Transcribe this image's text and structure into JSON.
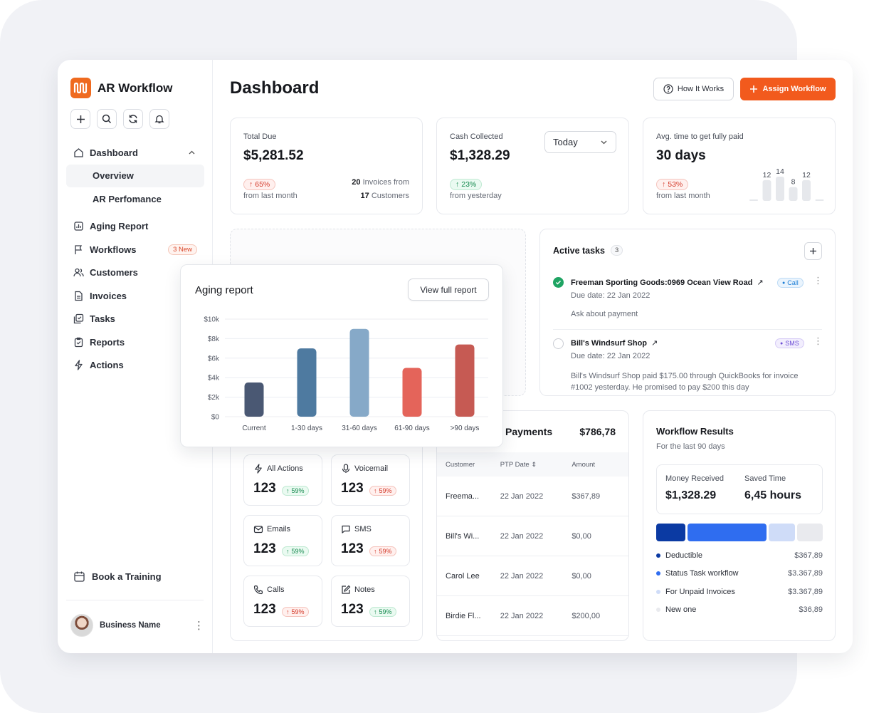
{
  "app": {
    "name": "AR Workflow"
  },
  "sidebar": {
    "nav": {
      "dashboard": "Dashboard",
      "overview": "Overview",
      "ar_performance": "AR Perfomance",
      "aging_report": "Aging Report",
      "workflows": "Workflows",
      "workflows_badge": "3 New",
      "customers": "Customers",
      "invoices": "Invoices",
      "tasks": "Tasks",
      "reports": "Reports",
      "actions": "Actions"
    },
    "book_training": "Book a Training",
    "user_name": "Business Name"
  },
  "header": {
    "title": "Dashboard",
    "how_it_works": "How It Works",
    "assign_workflow": "Assign Workflow"
  },
  "stats": {
    "total_due": {
      "label": "Total Due",
      "value": "$5,281.52",
      "change": "65%",
      "change_note": "from last month",
      "invoices_count": "20",
      "invoices_text": "Invoices from",
      "customers_count": "17",
      "customers_text": "Customers"
    },
    "cash_collected": {
      "label": "Cash Collected",
      "value": "$1,328.29",
      "change": "23%",
      "change_note": "from yesterday",
      "period": "Today"
    },
    "avg_time": {
      "label": "Avg. time to get fully paid",
      "value": "30 days",
      "change": "53%",
      "change_note": "from last month",
      "mini_bars": [
        null,
        12,
        14,
        8,
        12,
        null
      ]
    }
  },
  "aging": {
    "title": "Aging report",
    "view_full": "View full report",
    "chart_data": {
      "type": "bar",
      "title": "Aging report",
      "categories": [
        "Current",
        "1-30 days",
        "31-60 days",
        "61-90 days",
        ">90 days"
      ],
      "values": [
        3500,
        7000,
        9000,
        5000,
        7400
      ],
      "colors": [
        "#4a5873",
        "#4e7aa0",
        "#86a9c8",
        "#e4645a",
        "#c65a53"
      ],
      "y_ticks": [
        "$0",
        "$2k",
        "$4k",
        "$6k",
        "$8k",
        "$10k"
      ],
      "ylim": [
        0,
        10000
      ]
    }
  },
  "tasks": {
    "title": "Active tasks",
    "count": "3",
    "items": [
      {
        "title": "Freeman Sporting Goods:0969 Ocean View Road",
        "tag": "Call",
        "due": "Due date: 22 Jan 2022",
        "note": "Ask about payment"
      },
      {
        "title": "Bill's Windsurf Shop",
        "tag": "SMS",
        "due": "Due date: 22 Jan 2022",
        "note": "Bill's Windsurf Shop paid $175.00 through QuickBooks for invoice #1002 yesterday. He promised to pay $200 this day"
      }
    ]
  },
  "actions": {
    "items": [
      {
        "name": "All Actions",
        "value": "123",
        "change": "59%"
      },
      {
        "name": "Voicemail",
        "value": "123",
        "change": "59%"
      },
      {
        "name": "Emails",
        "value": "123",
        "change": "59%"
      },
      {
        "name": "SMS",
        "value": "123",
        "change": "59%"
      },
      {
        "name": "Calls",
        "value": "123",
        "change": "59%"
      },
      {
        "name": "Notes",
        "value": "123",
        "change": "59%"
      }
    ]
  },
  "payments": {
    "title": "Payments",
    "total": "$786,78",
    "columns": [
      "Customer",
      "PTP Date",
      "Amount"
    ],
    "rows": [
      {
        "customer": "Freema...",
        "date": "22 Jan 2022",
        "amount": "$367,89"
      },
      {
        "customer": "Bill's Wi...",
        "date": "22 Jan 2022",
        "amount": "$0,00"
      },
      {
        "customer": "Carol Lee",
        "date": "22 Jan 2022",
        "amount": "$0,00"
      },
      {
        "customer": "Birdie Fl...",
        "date": "22 Jan 2022",
        "amount": "$200,00"
      }
    ]
  },
  "workflow": {
    "title": "Workflow Results",
    "subtitle": "For the last 90 days",
    "money_label": "Money Received",
    "money_value": "$1,328.29",
    "saved_label": "Saved Time",
    "saved_value": "6,45 hours",
    "legend": [
      {
        "name": "Deductible",
        "value": "$367,89",
        "color": "#0b3aa3"
      },
      {
        "name": "Status Task workflow",
        "value": "$3.367,89",
        "color": "#2f6df0"
      },
      {
        "name": "For Unpaid Invoices",
        "value": "$3.367,89",
        "color": "#cfdcf8"
      },
      {
        "name": "New one",
        "value": "$36,89",
        "color": "#e9eaee"
      }
    ]
  }
}
